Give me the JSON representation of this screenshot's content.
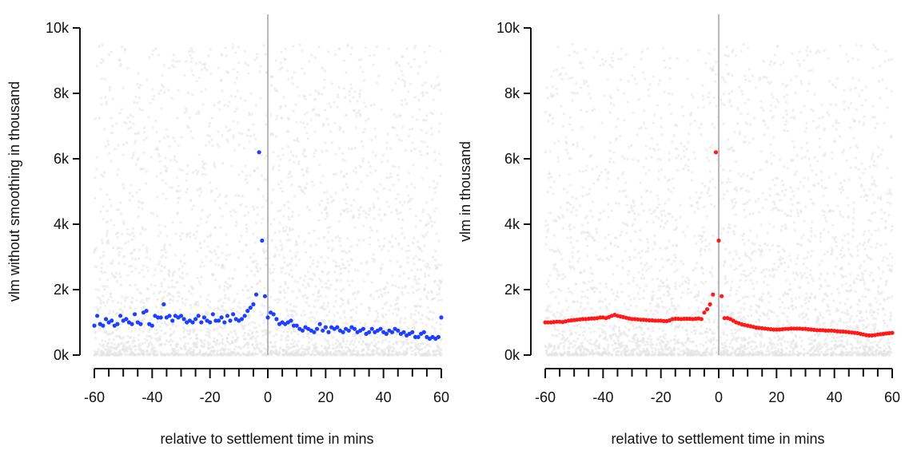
{
  "chart_data": [
    {
      "type": "scatter",
      "xlabel": "relative to settlement time in mins",
      "ylabel": "vlm without smoothing in thousand",
      "xlim": [
        -60,
        60
      ],
      "ylim": [
        0,
        10000
      ],
      "x_ticks": [
        -60,
        -40,
        -20,
        0,
        20,
        40,
        60
      ],
      "x_tick_labels": [
        "-60",
        "-40",
        "-20",
        "0",
        "20",
        "40",
        "60"
      ],
      "x_minor_ticks": [
        -55,
        -50,
        -45,
        -35,
        -30,
        -25,
        -15,
        -10,
        -5,
        5,
        10,
        15,
        25,
        30,
        35,
        45,
        50,
        55
      ],
      "y_ticks": [
        0,
        2000,
        4000,
        6000,
        8000,
        10000
      ],
      "y_tick_labels": [
        "0k",
        "2k",
        "4k",
        "6k",
        "8k",
        "10k"
      ],
      "vline_x": 0,
      "vline_color": "#b8b8b8",
      "background_color": "#e3e3e3",
      "series_color": "#1f3fff",
      "series": [
        {
          "x": [
            -60,
            -59,
            -58,
            -57,
            -56,
            -55,
            -54,
            -53,
            -52,
            -51,
            -50,
            -49,
            -48,
            -47,
            -46,
            -45,
            -44,
            -43,
            -42,
            -41,
            -40,
            -39,
            -38,
            -37,
            -36,
            -35,
            -34,
            -33,
            -32,
            -31,
            -30,
            -29,
            -28,
            -27,
            -26,
            -25,
            -24,
            -23,
            -22,
            -21,
            -20,
            -19,
            -18,
            -17,
            -16,
            -15,
            -14,
            -13,
            -12,
            -11,
            -10,
            -9,
            -8,
            -7,
            -6,
            -5,
            -4,
            -3,
            -2,
            -1,
            0,
            1,
            2,
            3,
            4,
            5,
            6,
            7,
            8,
            9,
            10,
            11,
            12,
            13,
            14,
            15,
            16,
            17,
            18,
            19,
            20,
            21,
            22,
            23,
            24,
            25,
            26,
            27,
            28,
            29,
            30,
            31,
            32,
            33,
            34,
            35,
            36,
            37,
            38,
            39,
            40,
            41,
            42,
            43,
            44,
            45,
            46,
            47,
            48,
            49,
            50,
            51,
            52,
            53,
            54,
            55,
            56,
            57,
            58,
            59,
            60
          ],
          "y": [
            900,
            1200,
            950,
            900,
            1100,
            1000,
            1050,
            900,
            950,
            1200,
            1050,
            1100,
            1000,
            950,
            1250,
            1000,
            950,
            1300,
            1350,
            950,
            900,
            1200,
            1150,
            1150,
            1550,
            1150,
            1200,
            1050,
            1200,
            1150,
            1200,
            1100,
            1000,
            1050,
            1000,
            1100,
            1200,
            1000,
            1150,
            1050,
            1000,
            1250,
            1050,
            1050,
            1150,
            1000,
            1200,
            1050,
            1250,
            1100,
            1050,
            1100,
            1200,
            1350,
            1450,
            1550,
            1850,
            6200,
            3500,
            1800,
            1150,
            1300,
            1250,
            1100,
            950,
            1000,
            950,
            1000,
            1050,
            900,
            900,
            800,
            750,
            850,
            800,
            750,
            700,
            800,
            950,
            750,
            850,
            700,
            850,
            800,
            850,
            750,
            700,
            800,
            750,
            850,
            800,
            700,
            750,
            800,
            650,
            700,
            800,
            700,
            750,
            800,
            700,
            650,
            750,
            700,
            800,
            750,
            650,
            700,
            600,
            650,
            700,
            550,
            550,
            650,
            700,
            550,
            500,
            550,
            500,
            550,
            1150
          ],
          "color": "#1f3fff"
        }
      ]
    },
    {
      "type": "scatter",
      "xlabel": "relative to settlement time in mins",
      "ylabel": "vlm in thousand",
      "xlim": [
        -60,
        60
      ],
      "ylim": [
        0,
        10000
      ],
      "x_ticks": [
        -60,
        -40,
        -20,
        0,
        20,
        40,
        60
      ],
      "x_tick_labels": [
        "-60",
        "-40",
        "-20",
        "0",
        "20",
        "40",
        "60"
      ],
      "x_minor_ticks": [
        -55,
        -50,
        -45,
        -35,
        -30,
        -25,
        -15,
        -10,
        -5,
        5,
        10,
        15,
        25,
        30,
        35,
        45,
        50,
        55
      ],
      "y_ticks": [
        0,
        2000,
        4000,
        6000,
        8000,
        10000
      ],
      "y_tick_labels": [
        "0k",
        "2k",
        "4k",
        "6k",
        "8k",
        "10k"
      ],
      "vline_x": 0,
      "vline_color": "#b8b8b8",
      "background_color": "#e3e3e3",
      "series_color": "#ff1a1a",
      "series": [
        {
          "x": [
            -60,
            -59,
            -58,
            -57,
            -56,
            -55,
            -54,
            -53,
            -52,
            -51,
            -50,
            -49,
            -48,
            -47,
            -46,
            -45,
            -44,
            -43,
            -42,
            -41,
            -40,
            -39,
            -38,
            -37,
            -36,
            -35,
            -34,
            -33,
            -32,
            -31,
            -30,
            -29,
            -28,
            -27,
            -26,
            -25,
            -24,
            -23,
            -22,
            -21,
            -20,
            -19,
            -18,
            -17,
            -16,
            -15,
            -14,
            -13,
            -12,
            -11,
            -10,
            -9,
            -8,
            -7,
            -6,
            -5,
            -4,
            -3,
            -2,
            -1,
            0,
            1,
            2,
            3,
            4,
            5,
            6,
            7,
            8,
            9,
            10,
            11,
            12,
            13,
            14,
            15,
            16,
            17,
            18,
            19,
            20,
            21,
            22,
            23,
            24,
            25,
            26,
            27,
            28,
            29,
            30,
            31,
            32,
            33,
            34,
            35,
            36,
            37,
            38,
            39,
            40,
            41,
            42,
            43,
            44,
            45,
            46,
            47,
            48,
            49,
            50,
            51,
            52,
            53,
            54,
            55,
            56,
            57,
            58,
            59,
            60
          ],
          "y": [
            1000,
            1000,
            1000,
            1010,
            1020,
            1020,
            1010,
            1030,
            1050,
            1060,
            1070,
            1080,
            1090,
            1100,
            1100,
            1110,
            1120,
            1120,
            1130,
            1150,
            1150,
            1130,
            1160,
            1200,
            1230,
            1200,
            1180,
            1160,
            1140,
            1120,
            1100,
            1100,
            1090,
            1080,
            1080,
            1070,
            1060,
            1060,
            1050,
            1050,
            1050,
            1040,
            1040,
            1060,
            1100,
            1110,
            1110,
            1100,
            1110,
            1110,
            1110,
            1100,
            1110,
            1120,
            1100,
            1300,
            1400,
            1550,
            1850,
            6200,
            3500,
            1800,
            1130,
            1130,
            1100,
            1050,
            1000,
            970,
            940,
            920,
            900,
            880,
            860,
            840,
            830,
            820,
            810,
            800,
            790,
            780,
            780,
            780,
            790,
            800,
            800,
            810,
            810,
            810,
            810,
            800,
            800,
            790,
            780,
            770,
            760,
            760,
            760,
            750,
            750,
            750,
            740,
            730,
            720,
            720,
            710,
            700,
            690,
            680,
            670,
            650,
            630,
            610,
            600,
            600,
            610,
            630,
            640,
            650,
            660,
            670,
            680
          ],
          "color": "#ff1a1a"
        }
      ]
    }
  ]
}
